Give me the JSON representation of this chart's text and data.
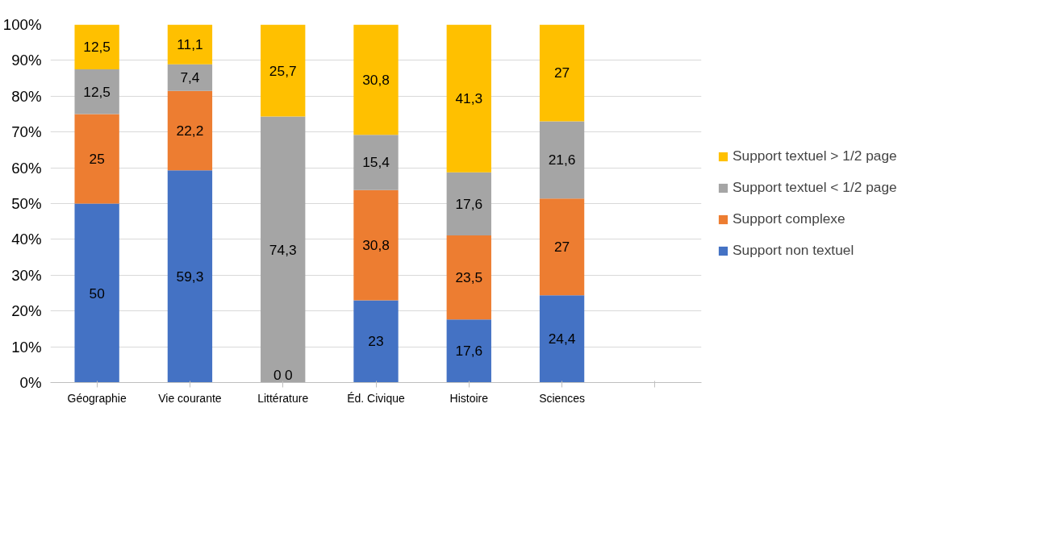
{
  "chart_data": {
    "type": "bar",
    "stacked": true,
    "categories": [
      "Géographie",
      "Vie courante",
      "Littérature",
      "Éd. Civique",
      "Histoire",
      "Sciences",
      null
    ],
    "series": [
      {
        "name": "Support non textuel",
        "color": "#4472c4",
        "values": [
          50,
          59.3,
          0,
          23,
          17.6,
          24.4,
          null
        ]
      },
      {
        "name": "Support complexe",
        "color": "#ed7d31",
        "values": [
          25,
          22.2,
          0,
          30.8,
          23.5,
          27,
          null
        ]
      },
      {
        "name": "Support textuel < 1/2 page",
        "color": "#a5a5a5",
        "values": [
          12.5,
          7.4,
          74.3,
          15.4,
          17.6,
          21.6,
          null
        ]
      },
      {
        "name": "Support textuel > 1/2 page",
        "color": "#ffc000",
        "values": [
          12.5,
          11.1,
          25.7,
          30.8,
          41.3,
          27,
          null
        ]
      }
    ],
    "ylim": [
      0,
      100
    ],
    "yticks": [
      {
        "value": 0,
        "label": "0%"
      },
      {
        "value": 10,
        "label": "10%"
      },
      {
        "value": 20,
        "label": "20%"
      },
      {
        "value": 30,
        "label": "30%"
      },
      {
        "value": 40,
        "label": "40%"
      },
      {
        "value": 50,
        "label": "50%"
      },
      {
        "value": 60,
        "label": "60%"
      },
      {
        "value": 70,
        "label": "70%"
      },
      {
        "value": 80,
        "label": "80%"
      },
      {
        "value": 90,
        "label": "90%"
      },
      {
        "value": 100,
        "label": "100%"
      }
    ],
    "value_labels": [
      [
        "50",
        "59,3",
        "0",
        "23",
        "17,6",
        "24,4",
        null
      ],
      [
        "25",
        "22,2",
        "0",
        "30,8",
        "23,5",
        "27",
        null
      ],
      [
        "12,5",
        "7,4",
        "74,3",
        "15,4",
        "17,6",
        "21,6",
        null
      ],
      [
        "12,5",
        "11,1",
        "25,7",
        "30,8",
        "41,3",
        "27",
        null
      ]
    ],
    "grid": "y",
    "legend": "right"
  }
}
